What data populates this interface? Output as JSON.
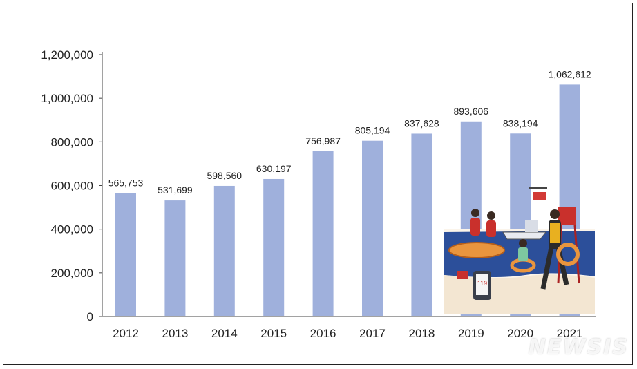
{
  "chart_data": {
    "type": "bar",
    "categories": [
      "2012",
      "2013",
      "2014",
      "2015",
      "2016",
      "2017",
      "2018",
      "2019",
      "2020",
      "2021"
    ],
    "values": [
      565753,
      531699,
      598560,
      630197,
      756987,
      805194,
      837628,
      893606,
      838194,
      1062612
    ],
    "value_labels": [
      "565,753",
      "531,699",
      "598,560",
      "630,197",
      "756,987",
      "805,194",
      "837,628",
      "893,606",
      "838,194",
      "1,062,612"
    ],
    "y_ticks": [
      "0",
      "200,000",
      "400,000",
      "600,000",
      "800,000",
      "1,000,000",
      "1,200,000"
    ],
    "ylim": [
      0,
      1200000
    ],
    "bar_color": "#9fb0dc",
    "grid": false,
    "legend": "none"
  },
  "watermark": "NEWSIS",
  "illustration": {
    "icon": "water-rescue-illustration-icon",
    "text": "119"
  }
}
